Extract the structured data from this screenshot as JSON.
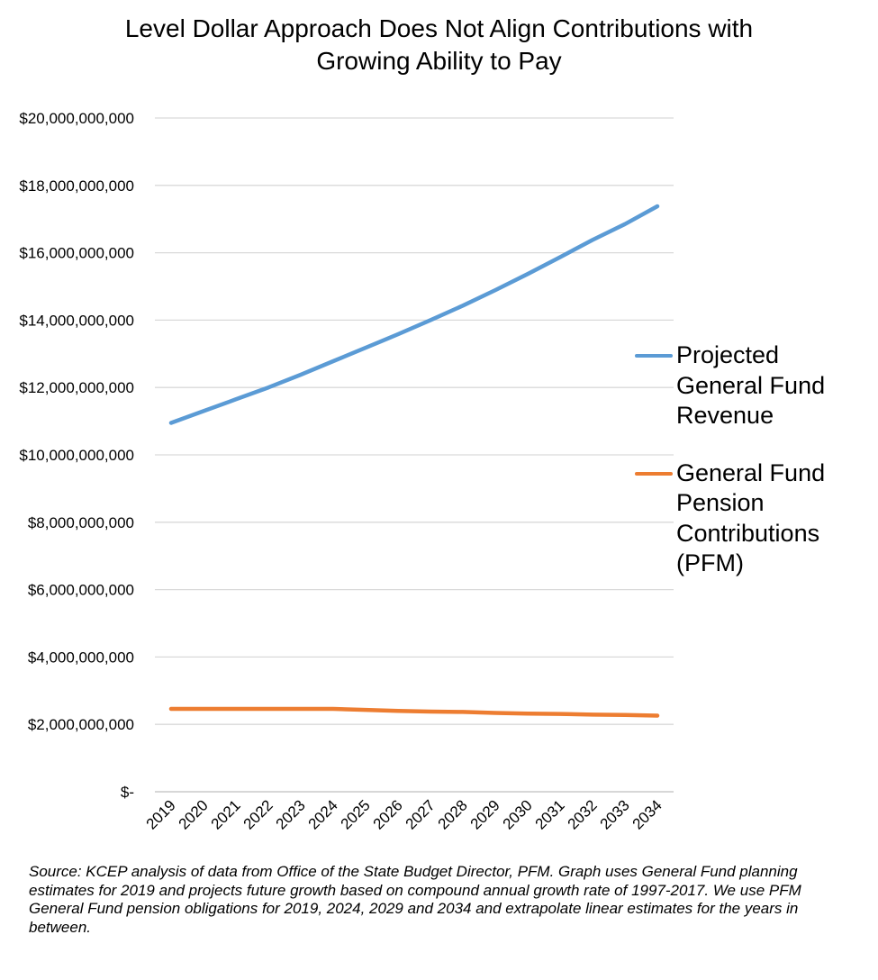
{
  "chart_data": {
    "type": "line",
    "title_lines": [
      "Level Dollar Approach Does Not Align Contributions with",
      "Growing Ability to Pay"
    ],
    "x": [
      "2019",
      "2020",
      "2021",
      "2022",
      "2023",
      "2024",
      "2025",
      "2026",
      "2027",
      "2028",
      "2029",
      "2030",
      "2031",
      "2032",
      "2033",
      "2034"
    ],
    "ylim": [
      0,
      20000000000
    ],
    "yticks": [
      {
        "value": 0,
        "label": "$-"
      },
      {
        "value": 2000000000,
        "label": "$2,000,000,000"
      },
      {
        "value": 4000000000,
        "label": "$4,000,000,000"
      },
      {
        "value": 6000000000,
        "label": "$6,000,000,000"
      },
      {
        "value": 8000000000,
        "label": "$8,000,000,000"
      },
      {
        "value": 10000000000,
        "label": "$10,000,000,000"
      },
      {
        "value": 12000000000,
        "label": "$12,000,000,000"
      },
      {
        "value": 14000000000,
        "label": "$14,000,000,000"
      },
      {
        "value": 16000000000,
        "label": "$16,000,000,000"
      },
      {
        "value": 18000000000,
        "label": "$18,000,000,000"
      },
      {
        "value": 20000000000,
        "label": "$20,000,000,000"
      }
    ],
    "grid": true,
    "legend_position": "right",
    "series": [
      {
        "name": "Projected General Fund Revenue",
        "color": "#5B9BD5",
        "values": [
          10950000000,
          11300000000,
          11650000000,
          12000000000,
          12380000000,
          12780000000,
          13180000000,
          13580000000,
          14000000000,
          14430000000,
          14890000000,
          15370000000,
          15870000000,
          16380000000,
          16850000000,
          17380000000
        ]
      },
      {
        "name": "General Fund Pension Contributions (PFM)",
        "color": "#ED7D31",
        "values": [
          2460000000,
          2460000000,
          2460000000,
          2460000000,
          2460000000,
          2460000000,
          2430000000,
          2400000000,
          2380000000,
          2370000000,
          2340000000,
          2320000000,
          2310000000,
          2290000000,
          2280000000,
          2260000000
        ]
      }
    ],
    "source_note": "Source: KCEP analysis of data from Office of the State Budget Director, PFM. Graph uses General Fund planning estimates for 2019 and projects future growth based on compound annual growth rate of 1997-2017.  We use PFM General Fund pension obligations for 2019, 2024, 2029 and 2034 and extrapolate linear estimates for the years in between."
  }
}
